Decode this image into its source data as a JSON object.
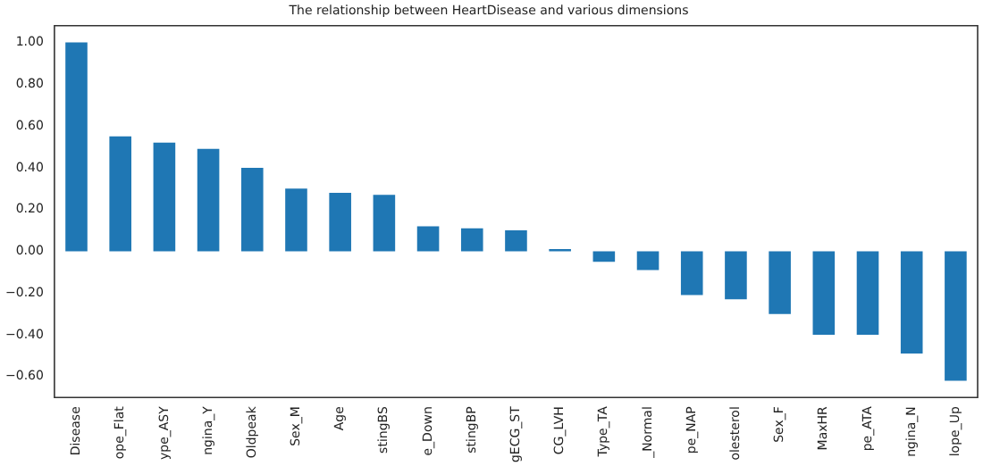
{
  "chart_data": {
    "type": "bar",
    "title": "The relationship between HeartDisease and various dimensions",
    "categories": [
      "Disease",
      "ope_Flat",
      "ype_ASY",
      "ngina_Y",
      "Oldpeak",
      "Sex_M",
      "Age",
      "stingBS",
      "e_Down",
      "stingBP",
      "gECG_ST",
      "CG_LVH",
      "Type_TA",
      "_Normal",
      "pe_NAP",
      "olesterol",
      "Sex_F",
      "MaxHR",
      "pe_ATA",
      "ngina_N",
      "lope_Up"
    ],
    "values": [
      1.0,
      0.55,
      0.52,
      0.49,
      0.4,
      0.3,
      0.28,
      0.27,
      0.12,
      0.11,
      0.1,
      0.01,
      -0.05,
      -0.09,
      -0.21,
      -0.23,
      -0.3,
      -0.4,
      -0.4,
      -0.49,
      -0.62
    ],
    "color": "#1f77b4",
    "ylim": [
      -0.7,
      1.08
    ],
    "yticks": [
      {
        "value": -0.6,
        "label": "−0.60"
      },
      {
        "value": -0.4,
        "label": "−0.40"
      },
      {
        "value": -0.2,
        "label": "−0.20"
      },
      {
        "value": 0,
        "label": "0.00"
      },
      {
        "value": 0.2,
        "label": "0.20"
      },
      {
        "value": 0.4,
        "label": "0.40"
      },
      {
        "value": 0.6,
        "label": "0.60"
      },
      {
        "value": 0.8,
        "label": "0.80"
      },
      {
        "value": 1.0,
        "label": "1.00"
      }
    ],
    "grid": false,
    "legend": false
  }
}
